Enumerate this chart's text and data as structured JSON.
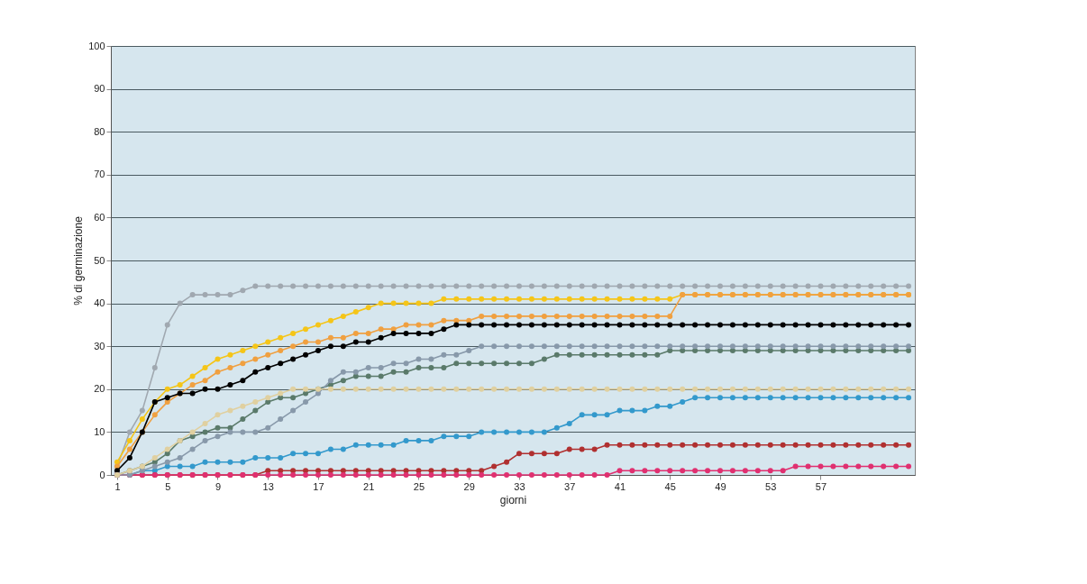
{
  "chart_data": {
    "type": "line",
    "xlabel": "giorni",
    "ylabel": "% di germinazione",
    "xlim": [
      0.5,
      64.5
    ],
    "xticks": [
      1,
      5,
      9,
      13,
      17,
      21,
      25,
      29,
      33,
      37,
      41,
      45,
      49,
      53,
      57
    ],
    "ylim": [
      0,
      100
    ],
    "yticks": [
      0,
      10,
      20,
      30,
      40,
      50,
      60,
      70,
      80,
      90,
      100
    ],
    "grid": "y",
    "marker": "circle",
    "line_style": "solid",
    "x": [
      1,
      2,
      3,
      4,
      5,
      6,
      7,
      8,
      9,
      10,
      11,
      12,
      13,
      14,
      15,
      16,
      17,
      18,
      19,
      20,
      21,
      22,
      23,
      24,
      25,
      26,
      27,
      28,
      29,
      30,
      31,
      32,
      33,
      34,
      35,
      36,
      37,
      38,
      39,
      40,
      41,
      42,
      43,
      44,
      45,
      46,
      47,
      48,
      49,
      50,
      51,
      52,
      53,
      54,
      55,
      56,
      57,
      58,
      59,
      60,
      61,
      62,
      63,
      64
    ],
    "series": [
      {
        "color": "#a0a8b0",
        "values": [
          2,
          10,
          15,
          25,
          35,
          40,
          42,
          42,
          42,
          42,
          43,
          44,
          44,
          44,
          44,
          44,
          44,
          44,
          44,
          44,
          44,
          44,
          44,
          44,
          44,
          44,
          44,
          44,
          44,
          44,
          44,
          44,
          44,
          44,
          44,
          44,
          44,
          44,
          44,
          44,
          44,
          44,
          44,
          44,
          44,
          44,
          44,
          44,
          44,
          44,
          44,
          44,
          44,
          44,
          44,
          44,
          44,
          44,
          44,
          44,
          44,
          44,
          44,
          44
        ]
      },
      {
        "color": "#f5c518",
        "values": [
          3,
          8,
          13,
          17,
          20,
          21,
          23,
          25,
          27,
          28,
          29,
          30,
          31,
          32,
          33,
          34,
          35,
          36,
          37,
          38,
          39,
          40,
          40,
          40,
          40,
          40,
          41,
          41,
          41,
          41,
          41,
          41,
          41,
          41,
          41,
          41,
          41,
          41,
          41,
          41,
          41,
          41,
          41,
          41,
          41,
          42,
          42,
          42,
          42,
          42,
          42,
          42,
          42,
          42,
          42,
          42,
          42,
          42,
          42,
          42,
          42,
          42,
          42,
          42
        ]
      },
      {
        "color": "#f0a040",
        "values": [
          2,
          6,
          10,
          14,
          17,
          19,
          21,
          22,
          24,
          25,
          26,
          27,
          28,
          29,
          30,
          31,
          31,
          32,
          32,
          33,
          33,
          34,
          34,
          35,
          35,
          35,
          36,
          36,
          36,
          37,
          37,
          37,
          37,
          37,
          37,
          37,
          37,
          37,
          37,
          37,
          37,
          37,
          37,
          37,
          37,
          42,
          42,
          42,
          42,
          42,
          42,
          42,
          42,
          42,
          42,
          42,
          42,
          42,
          42,
          42,
          42,
          42,
          42,
          42
        ]
      },
      {
        "color": "#000000",
        "values": [
          1,
          4,
          10,
          17,
          18,
          19,
          19,
          20,
          20,
          21,
          22,
          24,
          25,
          26,
          27,
          28,
          29,
          30,
          30,
          31,
          31,
          32,
          33,
          33,
          33,
          33,
          34,
          35,
          35,
          35,
          35,
          35,
          35,
          35,
          35,
          35,
          35,
          35,
          35,
          35,
          35,
          35,
          35,
          35,
          35,
          35,
          35,
          35,
          35,
          35,
          35,
          35,
          35,
          35,
          35,
          35,
          35,
          35,
          35,
          35,
          35,
          35,
          35,
          35
        ]
      },
      {
        "color": "#5a7a6a",
        "values": [
          0,
          1,
          2,
          3,
          5,
          8,
          9,
          10,
          11,
          11,
          13,
          15,
          17,
          18,
          18,
          19,
          20,
          21,
          22,
          23,
          23,
          23,
          24,
          24,
          25,
          25,
          25,
          26,
          26,
          26,
          26,
          26,
          26,
          26,
          27,
          28,
          28,
          28,
          28,
          28,
          28,
          28,
          28,
          28,
          29,
          29,
          29,
          29,
          29,
          29,
          29,
          29,
          29,
          29,
          29,
          29,
          29,
          29,
          29,
          29,
          29,
          29,
          29,
          29
        ]
      },
      {
        "color": "#3399cc",
        "values": [
          0,
          0,
          1,
          1,
          2,
          2,
          2,
          3,
          3,
          3,
          3,
          4,
          4,
          4,
          5,
          5,
          5,
          6,
          6,
          7,
          7,
          7,
          7,
          8,
          8,
          8,
          9,
          9,
          9,
          10,
          10,
          10,
          10,
          10,
          10,
          11,
          12,
          14,
          14,
          14,
          15,
          15,
          15,
          16,
          16,
          17,
          18,
          18,
          18,
          18,
          18,
          18,
          18,
          18,
          18,
          18,
          18,
          18,
          18,
          18,
          18,
          18,
          18,
          18
        ]
      },
      {
        "color": "#b03030",
        "values": [
          0,
          0,
          0,
          0,
          0,
          0,
          0,
          0,
          0,
          0,
          0,
          0,
          1,
          1,
          1,
          1,
          1,
          1,
          1,
          1,
          1,
          1,
          1,
          1,
          1,
          1,
          1,
          1,
          1,
          1,
          2,
          3,
          5,
          5,
          5,
          5,
          6,
          6,
          6,
          7,
          7,
          7,
          7,
          7,
          7,
          7,
          7,
          7,
          7,
          7,
          7,
          7,
          7,
          7,
          7,
          7,
          7,
          7,
          7,
          7,
          7,
          7,
          7,
          7
        ]
      },
      {
        "color": "#e03070",
        "values": [
          0,
          0,
          0,
          0,
          0,
          0,
          0,
          0,
          0,
          0,
          0,
          0,
          0,
          0,
          0,
          0,
          0,
          0,
          0,
          0,
          0,
          0,
          0,
          0,
          0,
          0,
          0,
          0,
          0,
          0,
          0,
          0,
          0,
          0,
          0,
          0,
          0,
          0,
          0,
          0,
          1,
          1,
          1,
          1,
          1,
          1,
          1,
          1,
          1,
          1,
          1,
          1,
          1,
          1,
          2,
          2,
          2,
          2,
          2,
          2,
          2,
          2,
          2,
          2
        ]
      },
      {
        "color": "#8899aa",
        "values": [
          0,
          0,
          1,
          2,
          3,
          4,
          6,
          8,
          9,
          10,
          10,
          10,
          11,
          13,
          15,
          17,
          19,
          22,
          24,
          24,
          25,
          25,
          26,
          26,
          27,
          27,
          28,
          28,
          29,
          30,
          30,
          30,
          30,
          30,
          30,
          30,
          30,
          30,
          30,
          30,
          30,
          30,
          30,
          30,
          30,
          30,
          30,
          30,
          30,
          30,
          30,
          30,
          30,
          30,
          30,
          30,
          30,
          30,
          30,
          30,
          30,
          30,
          30,
          30
        ]
      },
      {
        "color": "#e0d0a0",
        "values": [
          0,
          1,
          2,
          4,
          6,
          8,
          10,
          12,
          14,
          15,
          16,
          17,
          18,
          19,
          20,
          20,
          20,
          20,
          20,
          20,
          20,
          20,
          20,
          20,
          20,
          20,
          20,
          20,
          20,
          20,
          20,
          20,
          20,
          20,
          20,
          20,
          20,
          20,
          20,
          20,
          20,
          20,
          20,
          20,
          20,
          20,
          20,
          20,
          20,
          20,
          20,
          20,
          20,
          20,
          20,
          20,
          20,
          20,
          20,
          20,
          20,
          20,
          20,
          20
        ]
      }
    ]
  }
}
